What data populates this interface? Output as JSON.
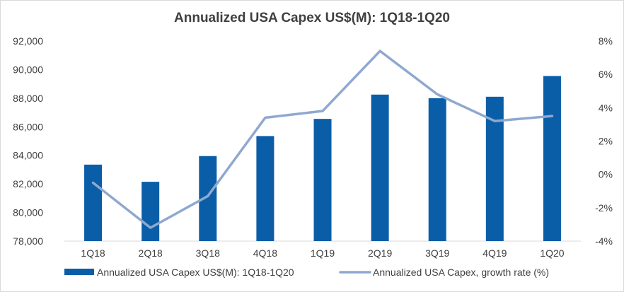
{
  "chart_data": {
    "type": "bar",
    "title": "Annualized USA Capex US$(M): 1Q18-1Q20",
    "categories": [
      "1Q18",
      "2Q18",
      "3Q18",
      "4Q18",
      "1Q19",
      "2Q19",
      "3Q19",
      "4Q19",
      "1Q20"
    ],
    "series": [
      {
        "name": "Annualized USA Capex US$(M): 1Q18-1Q20",
        "type": "bar",
        "axis": "left",
        "color": "#0a5ea8",
        "values": [
          83350,
          82150,
          83950,
          85350,
          86550,
          88250,
          88000,
          88100,
          89550
        ]
      },
      {
        "name": "Annualized USA Capex, growth rate (%)",
        "type": "line",
        "axis": "right",
        "color": "#8fa8d1",
        "values": [
          -0.5,
          -3.2,
          -1.3,
          3.4,
          3.8,
          7.4,
          4.8,
          3.2,
          3.5
        ]
      }
    ],
    "ylim_left": [
      78000,
      92000
    ],
    "yticks_left": [
      "78,000",
      "80,000",
      "82,000",
      "84,000",
      "86,000",
      "88,000",
      "90,000",
      "92,000"
    ],
    "ylim_right": [
      -4,
      8
    ],
    "yticks_right": [
      "-4%",
      "-2%",
      "0%",
      "2%",
      "4%",
      "6%",
      "8%"
    ],
    "grid": false,
    "legend_position": "bottom"
  }
}
